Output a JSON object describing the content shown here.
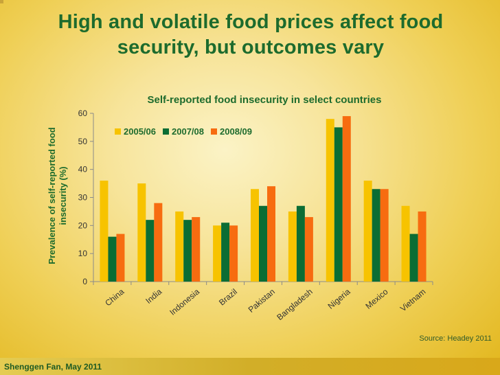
{
  "slide": {
    "title": "High and volatile food prices affect food security, but outcomes vary",
    "source": "Source: Headey 2011",
    "author": "Shenggen Fan, May 2011"
  },
  "colors": {
    "title_green": "#1d6b2d",
    "series_2005": "#f7c300",
    "series_2007": "#0b6d34",
    "series_2008": "#f76c10"
  },
  "chart_data": {
    "type": "bar",
    "title": "Self-reported food insecurity in select countries",
    "xlabel": "",
    "ylabel_lines": [
      "Prevalence of self-reported food",
      "insecurity (%)"
    ],
    "ylim": [
      0,
      60
    ],
    "yticks": [
      0,
      10,
      20,
      30,
      40,
      50,
      60
    ],
    "grid": false,
    "legend_position": "top-left",
    "categories": [
      "China",
      "India",
      "Indonesia",
      "Brazil",
      "Pakistan",
      "Bangladesh",
      "Nigeria",
      "Mexico",
      "Vietnam"
    ],
    "series": [
      {
        "name": "2005/06",
        "color": "#f7c300",
        "values": [
          36,
          35,
          25,
          20,
          33,
          25,
          58,
          36,
          27
        ]
      },
      {
        "name": "2007/08",
        "color": "#0b6d34",
        "values": [
          16,
          22,
          22,
          21,
          27,
          27,
          55,
          33,
          17
        ]
      },
      {
        "name": "2008/09",
        "color": "#f76c10",
        "values": [
          17,
          28,
          23,
          20,
          34,
          23,
          59,
          33,
          25
        ]
      }
    ]
  }
}
